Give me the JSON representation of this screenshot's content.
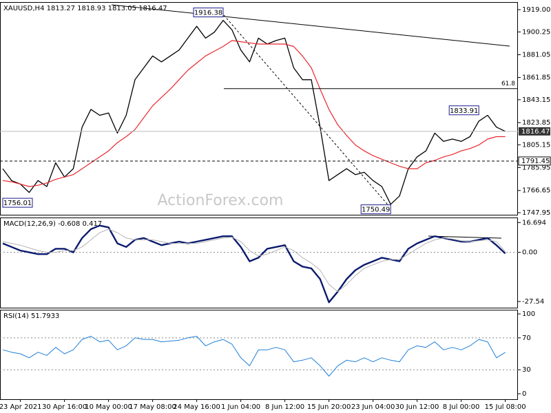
{
  "chart_data": [
    {
      "type": "line",
      "title": "XAUUSD,H4 1813.27 1818.93 1813.05 1816.47",
      "watermark": "ActionForex.com",
      "categories": [
        null,
        null,
        "23 Apr 2021",
        null,
        null,
        null,
        null,
        "30 Apr 16:00",
        null,
        null,
        null,
        null,
        "10 May 00:00",
        null,
        null,
        null,
        null,
        "17 May 08:00",
        null,
        null,
        null,
        null,
        "24 May 16:00",
        null,
        null,
        null,
        null,
        "1 Jun 04:00",
        null,
        null,
        null,
        null,
        "8 Jun 12:00",
        null,
        null,
        null,
        null,
        "15 Jun 20:00",
        null,
        null,
        null,
        null,
        "23 Jun 04:00",
        null,
        null,
        null,
        null,
        "30 Jun 12:00",
        null,
        null,
        null,
        null,
        "8 Jul 00:00",
        null,
        null,
        null,
        null,
        "15 Jul 08:00"
      ],
      "series": [
        {
          "color": "#000000",
          "width": 1.3,
          "values": [
            1785,
            1775,
            1772,
            1765,
            1775,
            1770,
            1790,
            1778,
            1785,
            1820,
            1835,
            1830,
            1832,
            1815,
            1830,
            1860,
            1870,
            1880,
            1875,
            1880,
            1885,
            1895,
            1905,
            1895,
            1900,
            1910,
            1902,
            1885,
            1875,
            1895,
            1890,
            1893,
            1895,
            1870,
            1860,
            1860,
            1820,
            1775,
            1780,
            1785,
            1780,
            1782,
            1775,
            1770,
            1755,
            1762,
            1785,
            1795,
            1800,
            1815,
            1808,
            1810,
            1808,
            1812,
            1825,
            1830,
            1820,
            1816.47
          ]
        },
        {
          "color": "#e8262d",
          "width": 1.2,
          "values": [
            1775,
            1774,
            1772,
            1770,
            1771,
            1773,
            1776,
            1778,
            1780,
            1785,
            1790,
            1795,
            1800,
            1807,
            1812,
            1818,
            1828,
            1838,
            1845,
            1852,
            1860,
            1868,
            1874,
            1880,
            1884,
            1888,
            1893,
            1892,
            1891,
            1890,
            1890,
            1890,
            1890,
            1888,
            1880,
            1870,
            1852,
            1835,
            1822,
            1813,
            1805,
            1800,
            1796,
            1793,
            1790,
            1787,
            1785,
            1785,
            1790,
            1792,
            1795,
            1797,
            1800,
            1802,
            1805,
            1810,
            1812,
            1812
          ]
        }
      ],
      "ylim": [
        1746.2,
        1925.4
      ],
      "yticks": [
        {
          "value": 1919,
          "label": "1919.00"
        },
        1900.25,
        1881.05,
        1861.85,
        1843.15,
        1823.85,
        1805.15,
        1785.95,
        1766.65,
        1747.95
      ],
      "price_labels": [
        {
          "value": 1916.38,
          "x": 25
        },
        {
          "value": 1833.91,
          "x": 54
        },
        {
          "value": 1750.49,
          "x": 44
        },
        {
          "value": 1756.01,
          "x": 0
        }
      ],
      "support": 1791.45,
      "current": 1816.47,
      "fib": {
        "label": "61.8",
        "value": 1852.5
      }
    },
    {
      "type": "line",
      "title": "MACD(12,26,9) -0.608 0.417",
      "series": [
        {
          "color": "#0a1a6e",
          "width": 2.4,
          "values": [
            5,
            3,
            1,
            0,
            -1,
            -1,
            2,
            2,
            0,
            8,
            13,
            15,
            14,
            5,
            3,
            7,
            8,
            6,
            4,
            5,
            6,
            5,
            6,
            7,
            8,
            9,
            9,
            3,
            -5,
            -3,
            2,
            3,
            4,
            -5,
            -8,
            -9,
            -15,
            -28,
            -22,
            -15,
            -10,
            -7,
            -5,
            -3,
            -4,
            -5,
            2,
            5,
            7,
            9,
            8,
            7,
            6,
            6,
            7,
            8,
            4,
            -0.608
          ]
        },
        {
          "color": "#b4b4b4",
          "width": 1,
          "values": [
            6,
            5,
            4,
            2.5,
            1,
            0,
            0,
            1,
            1,
            3,
            7,
            11,
            13,
            11,
            8,
            7,
            7,
            7,
            6,
            5,
            5,
            5,
            5,
            6,
            7,
            8,
            8.5,
            6,
            1,
            -2,
            -1,
            1,
            3,
            1,
            -3,
            -6,
            -10,
            -18,
            -22,
            -18,
            -13,
            -9,
            -7,
            -5,
            -4,
            -4,
            -1,
            2,
            5,
            7,
            8,
            7.5,
            6.5,
            6,
            6.5,
            7,
            6,
            0.417
          ]
        }
      ],
      "ylim": [
        -31,
        19.5
      ],
      "yticks": [
        16.694,
        {
          "value": 0,
          "label": "0.00"
        },
        -27.54
      ],
      "levels": [
        0
      ]
    },
    {
      "type": "line",
      "title": "RSI(14) 51.7933",
      "series": [
        {
          "color": "#1e7fd8",
          "width": 1,
          "values": [
            55,
            52,
            50,
            45,
            52,
            48,
            58,
            50,
            55,
            68,
            72,
            65,
            67,
            55,
            60,
            70,
            68,
            68,
            65,
            66,
            67,
            70,
            72,
            60,
            65,
            68,
            62,
            45,
            35,
            55,
            55,
            58,
            55,
            40,
            42,
            45,
            35,
            22,
            35,
            42,
            40,
            45,
            40,
            45,
            42,
            40,
            55,
            60,
            58,
            65,
            55,
            58,
            55,
            60,
            68,
            65,
            45,
            51.7933
          ]
        }
      ],
      "ylim": [
        -6.9,
        105.2
      ],
      "yticks": [
        100,
        70,
        30,
        0
      ],
      "levels": [
        70,
        30
      ]
    }
  ]
}
